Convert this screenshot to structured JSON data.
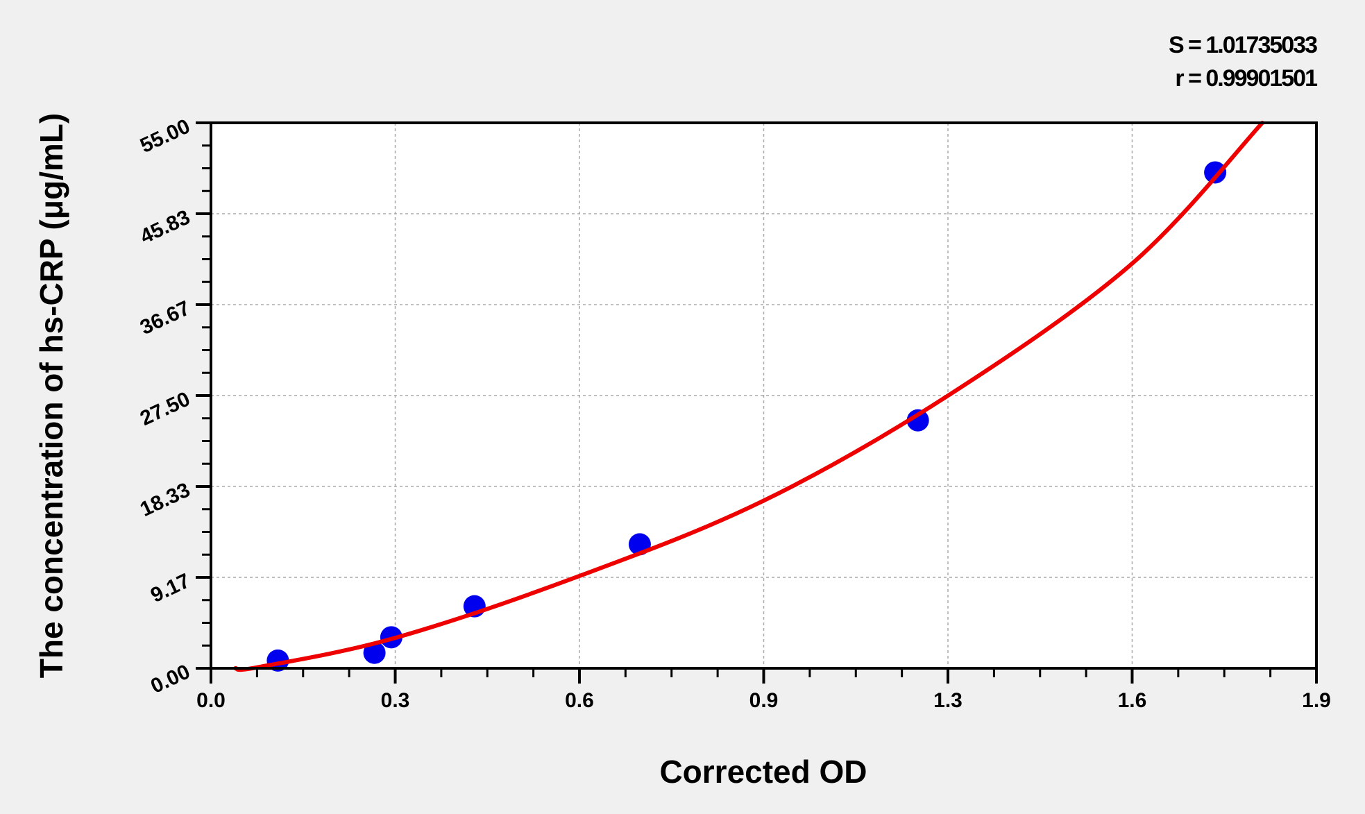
{
  "chart_data": {
    "type": "scatter",
    "title": "",
    "xlabel": "Corrected OD",
    "ylabel": "The concentration of hs-CRP (μg/mL)",
    "xlim": [
      0,
      1.9
    ],
    "ylim": [
      0,
      55
    ],
    "x_ticks": [
      0,
      0.3167,
      0.6333,
      0.95,
      1.2667,
      1.5833,
      1.9
    ],
    "x_tick_labels": [
      "0.0",
      "0.3",
      "0.6",
      "0.9",
      "1.3",
      "1.6",
      "1.9"
    ],
    "y_ticks": [
      0,
      9.1667,
      18.3333,
      27.5,
      36.6667,
      45.8333,
      55
    ],
    "y_tick_labels": [
      "0.00",
      "9.17",
      "18.33",
      "27.50",
      "36.67",
      "45.83",
      "55.00"
    ],
    "grid": true,
    "annotations": [
      "S = 1.01735033",
      "r = 0.99901501"
    ],
    "points": {
      "x": [
        0.115,
        0.281,
        0.31,
        0.453,
        0.737,
        1.215,
        1.726
      ],
      "y": [
        0.78,
        1.56,
        3.125,
        6.25,
        12.5,
        25,
        50
      ],
      "color": "#0000ee"
    },
    "fit_curve": {
      "x": [
        0.042,
        0.08,
        0.317,
        0.633,
        0.95,
        1.267,
        1.583,
        1.807
      ],
      "y": [
        0,
        0.1,
        3.07,
        9.3,
        16.9,
        27.5,
        40.8,
        55
      ],
      "color": "#ee0000"
    }
  }
}
